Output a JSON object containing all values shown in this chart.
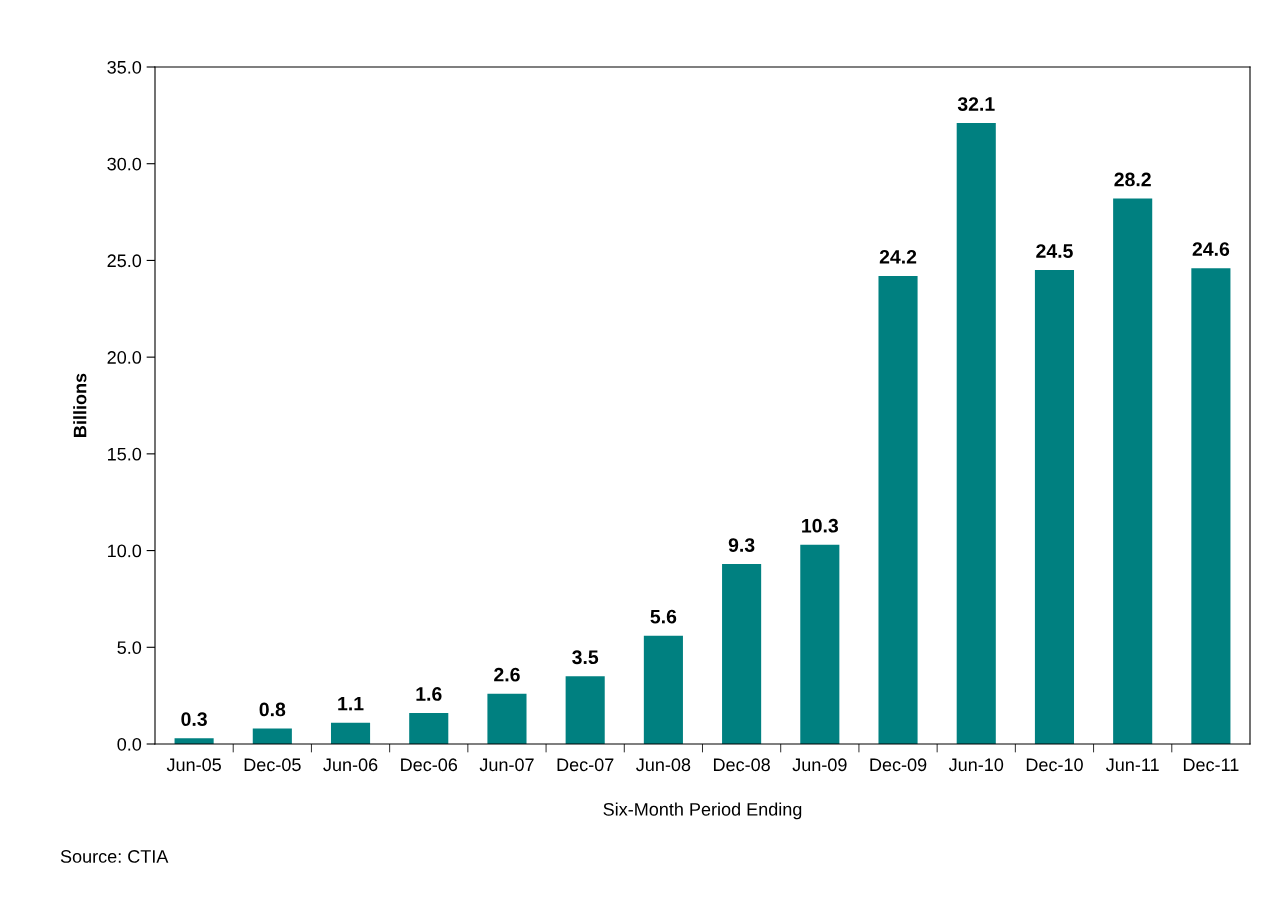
{
  "chart_data": {
    "type": "bar",
    "categories": [
      "Jun-05",
      "Dec-05",
      "Jun-06",
      "Dec-06",
      "Jun-07",
      "Dec-07",
      "Jun-08",
      "Dec-08",
      "Jun-09",
      "Dec-09",
      "Jun-10",
      "Dec-10",
      "Jun-11",
      "Dec-11"
    ],
    "values": [
      0.3,
      0.8,
      1.1,
      1.6,
      2.6,
      3.5,
      5.6,
      9.3,
      10.3,
      24.2,
      32.1,
      24.5,
      28.2,
      24.6
    ],
    "color": "#008080",
    "xlabel": "Six-Month Period Ending",
    "ylabel": "Billions",
    "ylim": [
      0,
      35
    ],
    "yticks": [
      {
        "value": 0,
        "label": "0.0"
      },
      {
        "value": 5,
        "label": "5.0"
      },
      {
        "value": 10,
        "label": "10.0"
      },
      {
        "value": 15,
        "label": "15.0"
      },
      {
        "value": 20,
        "label": "20.0"
      },
      {
        "value": 25,
        "label": "25.0"
      },
      {
        "value": 30,
        "label": "30.0"
      },
      {
        "value": 35,
        "label": "35.0"
      }
    ],
    "data_labels": true,
    "grid": false,
    "legend": false,
    "annotations": [
      "Source: CTIA"
    ]
  }
}
